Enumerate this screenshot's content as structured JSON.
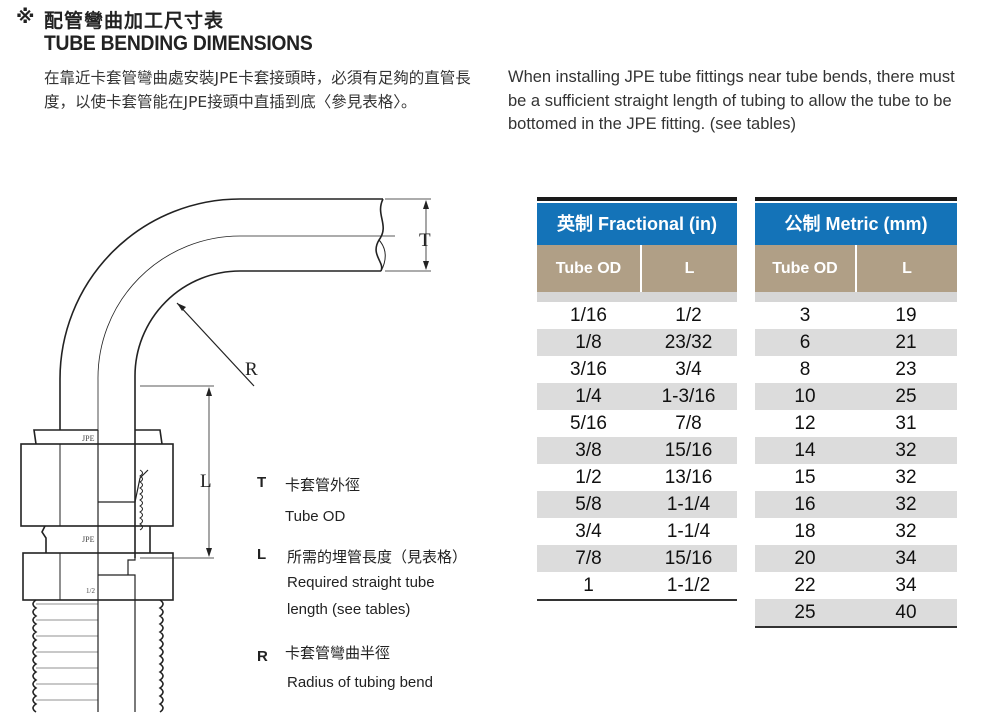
{
  "header": {
    "mark": "※",
    "title_zh": "配管彎曲加工尺寸表",
    "title_en": "TUBE BENDING DIMENSIONS",
    "desc_zh": "在靠近卡套管彎曲處安裝JPE卡套接頭時，必須有足夠的直管長度，以使卡套管能在JPE接頭中直插到底〈參見表格〉。",
    "desc_en": "When installing JPE tube fittings near tube bends, there must be a sufficient straight length of tubing to allow the tube to be bottomed in the JPE fitting. (see tables)"
  },
  "drawing": {
    "label_t": "T",
    "label_r": "R",
    "label_l": "L",
    "stamp_1": "JPE",
    "stamp_2": "JPE",
    "stamp_3": "1/2"
  },
  "legend": [
    {
      "key": "T",
      "zh": "卡套管外徑",
      "en": "Tube OD"
    },
    {
      "key": "L",
      "zh": "所需的埋管長度（見表格）",
      "en": "Required straight tube",
      "en2": "length  (see tables)"
    },
    {
      "key": "R",
      "zh": "卡套管彎曲半徑",
      "en": "Radius of tubing bend"
    }
  ],
  "tables": {
    "fractional": {
      "caption": "英制 Fractional (in)",
      "col1": "Tube OD",
      "col2": "L",
      "rows": [
        [
          "1/16",
          "1/2"
        ],
        [
          "1/8",
          "23/32"
        ],
        [
          "3/16",
          "3/4"
        ],
        [
          "1/4",
          "1-3/16"
        ],
        [
          "5/16",
          "7/8"
        ],
        [
          "3/8",
          "15/16"
        ],
        [
          "1/2",
          "13/16"
        ],
        [
          "5/8",
          "1-1/4"
        ],
        [
          "3/4",
          "1-1/4"
        ],
        [
          "7/8",
          "15/16"
        ],
        [
          "1",
          "1-1/2"
        ]
      ]
    },
    "metric": {
      "caption": "公制 Metric (mm)",
      "col1": "Tube OD",
      "col2": "L",
      "rows": [
        [
          "3",
          "19"
        ],
        [
          "6",
          "21"
        ],
        [
          "8",
          "23"
        ],
        [
          "10",
          "25"
        ],
        [
          "12",
          "31"
        ],
        [
          "14",
          "32"
        ],
        [
          "15",
          "32"
        ],
        [
          "16",
          "32"
        ],
        [
          "18",
          "32"
        ],
        [
          "20",
          "34"
        ],
        [
          "22",
          "34"
        ],
        [
          "25",
          "40"
        ]
      ]
    }
  },
  "colors": {
    "table_caption": "#1473b8",
    "table_header": "#b09f86",
    "row_stripe": "#dcdcdc"
  }
}
